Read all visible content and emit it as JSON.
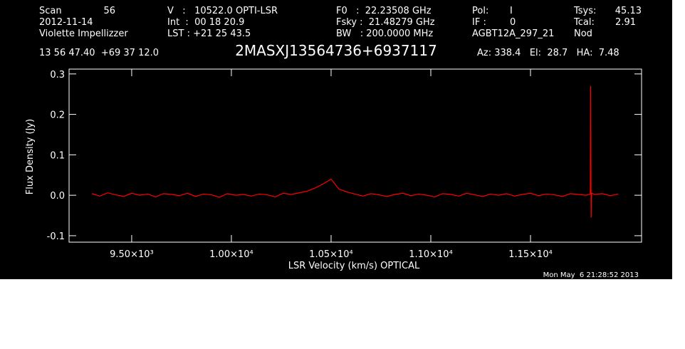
{
  "header": {
    "col1": [
      "Scan",
      "2012-11-14",
      "Violette Impellizzer"
    ],
    "scan_number": "56",
    "col2": [
      "V   :   10522.0 OPTI-LSR",
      "Int  :  00 18 20.9",
      "LST : +21 25 43.5"
    ],
    "col3": [
      "F0   :  22.23508 GHz",
      "Fsky :  21.48279 GHz",
      "BW   : 200.0000 MHz"
    ],
    "col4": [
      "Pol:",
      "IF :",
      "AGBT12A_297_21"
    ],
    "col4_values": [
      "I",
      "0"
    ],
    "col5": [
      "Tsys:",
      "Tcal:",
      "Nod"
    ],
    "col5_values": [
      "45.13",
      "2.91"
    ],
    "coordinates": "13 56 47.40  +69 37 12.0",
    "pointing": "Az: 338.4   El:  28.7   HA:  7.48",
    "timestamp": "Mon May  6 21:28:52 2013"
  },
  "chart_data": {
    "type": "line",
    "title": "2MASXJ13564736+6937117",
    "x_label": "LSR Velocity (km/s) OPTICAL",
    "y_label": "Flux Density (Jy)",
    "color": "#ff0000",
    "x": [
      9300,
      9340,
      9380,
      9420,
      9460,
      9500,
      9540,
      9580,
      9620,
      9660,
      9700,
      9740,
      9780,
      9820,
      9860,
      9900,
      9940,
      9980,
      10020,
      10060,
      10100,
      10140,
      10180,
      10220,
      10260,
      10300,
      10340,
      10380,
      10420,
      10460,
      10500,
      10540,
      10580,
      10620,
      10660,
      10700,
      10740,
      10780,
      10820,
      10860,
      10900,
      10940,
      10980,
      11020,
      11060,
      11100,
      11140,
      11180,
      11220,
      11260,
      11300,
      11340,
      11380,
      11420,
      11460,
      11500,
      11540,
      11580,
      11620,
      11660,
      11700,
      11740,
      11780,
      11800,
      11802,
      11804,
      11806,
      11820,
      11860,
      11900,
      11940
    ],
    "values": [
      0.004,
      -0.002,
      0.006,
      0.001,
      -0.003,
      0.005,
      0.0,
      0.003,
      -0.004,
      0.004,
      0.002,
      -0.001,
      0.005,
      -0.003,
      0.003,
      0.001,
      -0.005,
      0.004,
      0.0,
      0.002,
      -0.002,
      0.003,
      0.001,
      -0.004,
      0.005,
      0.002,
      0.006,
      0.01,
      0.018,
      0.028,
      0.04,
      0.015,
      0.008,
      0.003,
      -0.002,
      0.004,
      0.001,
      -0.003,
      0.002,
      0.005,
      -0.001,
      0.003,
      0.0,
      -0.004,
      0.004,
      0.002,
      -0.002,
      0.005,
      0.001,
      -0.003,
      0.003,
      0.0,
      0.004,
      -0.002,
      0.002,
      0.005,
      -0.001,
      0.003,
      0.001,
      -0.003,
      0.004,
      0.002,
      0.0,
      0.003,
      0.27,
      -0.055,
      0.006,
      0.002,
      0.004,
      -0.001,
      0.003
    ],
    "xlim": [
      9186,
      12057
    ],
    "ylim": [
      -0.116,
      0.312
    ],
    "xticks": [
      {
        "value": 9500,
        "label": "9.50×10³"
      },
      {
        "value": 10000,
        "label": "1.00×10⁴"
      },
      {
        "value": 10500,
        "label": "1.05×10⁴"
      },
      {
        "value": 11000,
        "label": "1.10×10⁴"
      },
      {
        "value": 11500,
        "label": "1.15×10⁴"
      }
    ],
    "yticks": [
      -0.1,
      {
        "value": 0,
        "label": "0.0"
      },
      0.1,
      0.2,
      0.3
    ]
  }
}
